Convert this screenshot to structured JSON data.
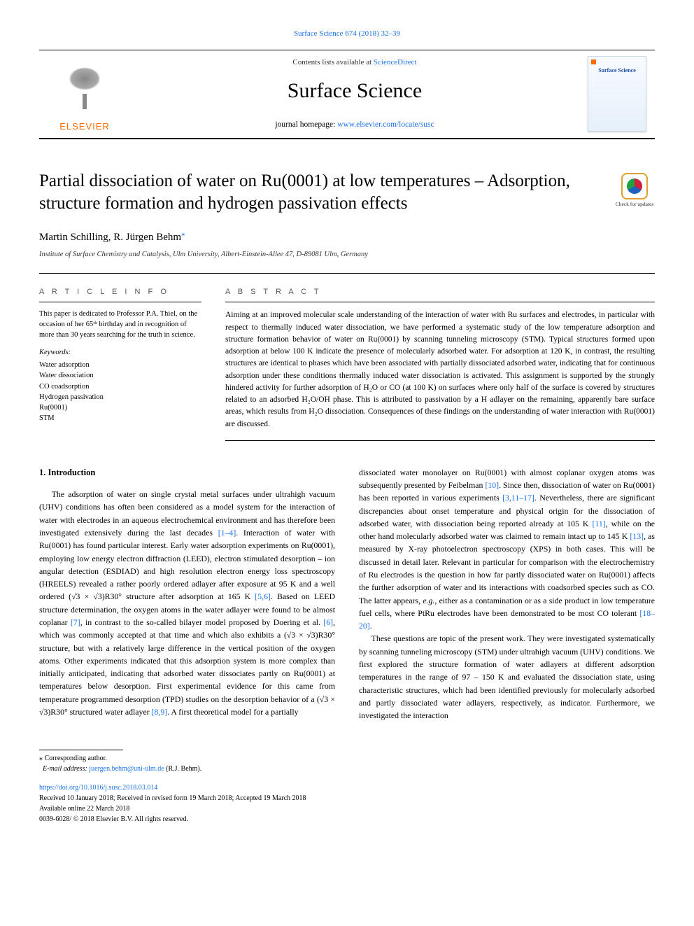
{
  "header": {
    "journal_ref_text": "Surface Science 674 (2018) 32–39",
    "contents_prefix": "Contents lists available at ",
    "contents_link": "ScienceDirect",
    "journal_title": "Surface Science",
    "homepage_label": "journal homepage: ",
    "homepage_url": "www.elsevier.com/locate/susc",
    "publisher": "ELSEVIER",
    "cover_caption": "Surface Science"
  },
  "title": "Partial dissociation of water on Ru(0001) at low temperatures – Adsorption, structure formation and hydrogen passivation effects",
  "check_updates_label": "Check for updates",
  "authors": "Martin Schilling, R. Jürgen Behm",
  "corr_glyph": "⁎",
  "affiliation": "Institute of Surface Chemistry and Catalysis, Ulm University, Albert-Einstein-Allee 47, D-89081 Ulm, Germany",
  "article_info": {
    "heading": "A R T I C L E   I N F O",
    "dedication": "This paper is dedicated to Professor P.A. Thiel, on the occasion of her 65ᵗʰ birthday and in recognition of more than 30 years searching for the truth in science.",
    "keywords_heading": "Keywords:",
    "keywords": [
      "Water adsorption",
      "Water dissociation",
      "CO coadsorption",
      "Hydrogen passivation",
      "Ru(0001)",
      "STM"
    ]
  },
  "abstract": {
    "heading": "A B S T R A C T",
    "text": "Aiming at an improved molecular scale understanding of the interaction of water with Ru surfaces and electrodes, in particular with respect to thermally induced water dissociation, we have performed a systematic study of the low temperature adsorption and structure formation behavior of water on Ru(0001) by scanning tunneling microscopy (STM). Typical structures formed upon adsorption at below 100 K indicate the presence of molecularly adsorbed water. For adsorption at 120 K, in contrast, the resulting structures are identical to phases which have been associated with partially dissociated adsorbed water, indicating that for continuous adsorption under these conditions thermally induced water dissociation is activated. This assignment is supported by the strongly hindered activity for further adsorption of H₂O or CO (at 100 K) on surfaces where only half of the surface is covered by structures related to an adsorbed H₂O/OH phase. This is attributed to passivation by a H adlayer on the remaining, apparently bare surface areas, which results from H₂O dissociation. Consequences of these findings on the understanding of water interaction with Ru(0001) are discussed."
  },
  "body": {
    "intro_heading": "1.  Introduction",
    "col1": "The adsorption of water on single crystal metal surfaces under ultrahigh vacuum (UHV) conditions has often been considered as a model system for the interaction of water with electrodes in an aqueous electrochemical environment and has therefore been investigated extensively during the last decades [1–4]. Interaction of water with Ru(0001) has found particular interest. Early water adsorption experiments on Ru(0001), employing low energy electron diffraction (LEED), electron stimulated desorption – ion angular detection (ESDIAD) and high resolution electron energy loss spectroscopy (HREELS) revealed a rather poorly ordered adlayer after exposure at 95 K and a well ordered (√3 × √3)R30° structure after adsorption at 165 K [5,6]. Based on LEED structure determination, the oxygen atoms in the water adlayer were found to be almost coplanar [7], in contrast to the so-called bilayer model proposed by Doering et al. [6], which was commonly accepted at that time and which also exhibits a (√3 × √3)R30° structure, but with a relatively large difference in the vertical position of the oxygen atoms. Other experiments indicated that this adsorption system is more complex than initially anticipated, indicating that adsorbed water dissociates partly on Ru(0001) at temperatures below desorption. First experimental evidence for this came from temperature programmed desorption (TPD) studies on the desorption behavior of a (√3 × √3)R30° structured water adlayer [8,9]. A first theoretical model for a partially",
    "col2": "dissociated water monolayer on Ru(0001) with almost coplanar oxygen atoms was subsequently presented by Feibelman [10]. Since then, dissociation of water on Ru(0001) has been reported in various experiments [3,11–17]. Nevertheless, there are significant discrepancies about onset temperature and physical origin for the dissociation of adsorbed water, with dissociation being reported already at 105 K [11], while on the other hand molecularly adsorbed water was claimed to remain intact up to 145 K [13], as measured by X-ray photoelectron spectroscopy (XPS) in both cases. This will be discussed in detail later. Relevant in particular for comparison with the electrochemistry of Ru electrodes is the question in how far partly dissociated water on Ru(0001) affects the further adsorption of water and its interactions with coadsorbed species such as CO. The latter appears, e.g., either as a contamination or as a side product in low temperature fuel cells, where PtRu electrodes have been demonstrated to be most CO tolerant [18–20].",
    "col2_p2": "These questions are topic of the present work. They were investigated systematically by scanning tunneling microscopy (STM) under ultrahigh vacuum (UHV) conditions. We first explored the structure formation of water adlayers at different adsorption temperatures in the range of 97 – 150 K and evaluated the dissociation state, using characteristic structures, which had been identified previously for molecularly adsorbed and partly dissociated water adlayers, respectively, as indicator. Furthermore, we investigated the interaction"
  },
  "footer": {
    "corr_label": "Corresponding author.",
    "email_label": "E-mail address:",
    "email": "juergen.behm@uni-ulm.de",
    "email_person": "(R.J. Behm).",
    "doi": "https://doi.org/10.1016/j.susc.2018.03.014",
    "received": "Received 10 January 2018; Received in revised form 19 March 2018; Accepted 19 March 2018",
    "available": "Available online 22 March 2018",
    "issn": "0039-6028/ © 2018 Elsevier B.V. All rights reserved."
  },
  "cites": {
    "c1": "[1–4]",
    "c2": "[5,6]",
    "c3": "[7]",
    "c4": "[6]",
    "c5": "[8,9]",
    "c6": "[10]",
    "c7": "[3,11–17]",
    "c8": "[11]",
    "c9": "[13]",
    "c10": "[18–20]"
  },
  "colors": {
    "link": "#1a73e8",
    "elsevier_orange": "#ff6a00"
  }
}
